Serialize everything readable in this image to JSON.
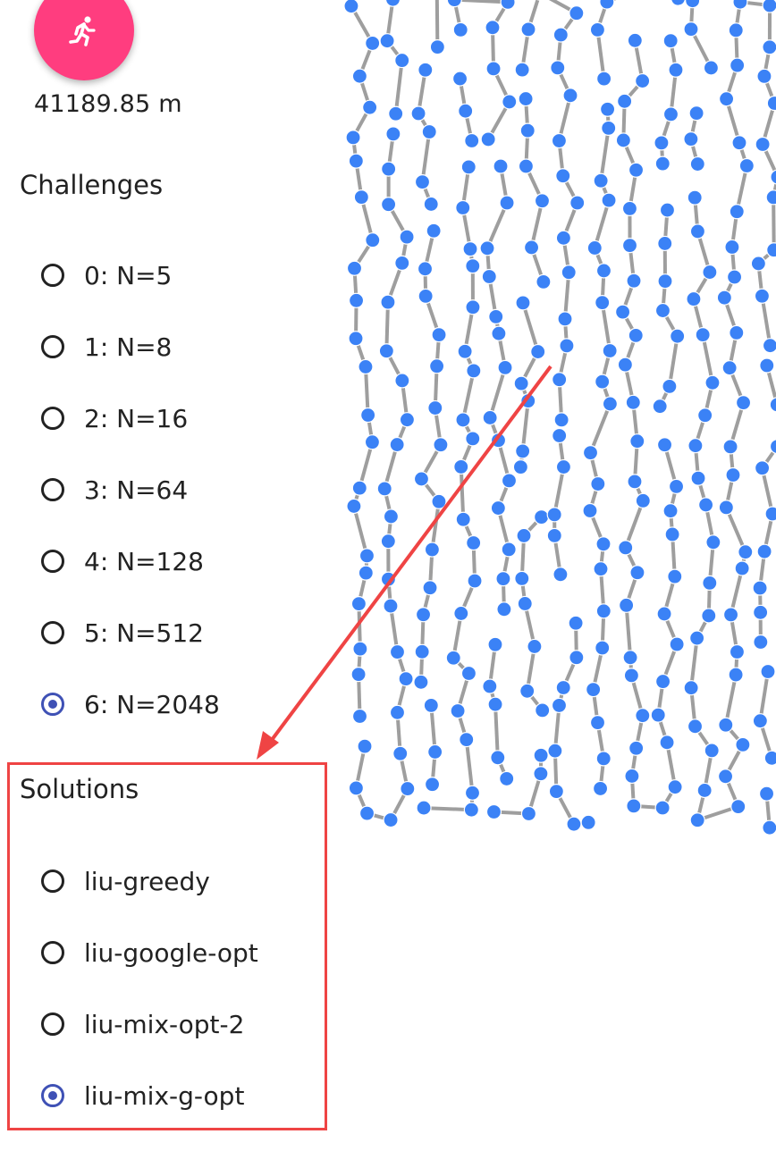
{
  "distance": {
    "value": "41189.85 m"
  },
  "run_button": {
    "icon": "running-person-icon",
    "color": "#ff3d7f"
  },
  "challenges": {
    "heading": "Challenges",
    "selected_index": 6,
    "options": [
      "0: N=5",
      "1: N=8",
      "2: N=16",
      "3: N=64",
      "4: N=128",
      "5: N=512",
      "6: N=2048"
    ]
  },
  "solutions": {
    "heading": "Solutions",
    "selected_index": 3,
    "options": [
      "liu-greedy",
      "liu-google-opt",
      "liu-mix-opt-2",
      "liu-mix-g-opt"
    ]
  },
  "colors": {
    "accent": "#3f51b5",
    "node": "#3b82f6",
    "edge": "#9e9e9e",
    "annotation": "#ef4444"
  },
  "annotation": {
    "shape": "arrow-and-box",
    "target": "solutions"
  }
}
